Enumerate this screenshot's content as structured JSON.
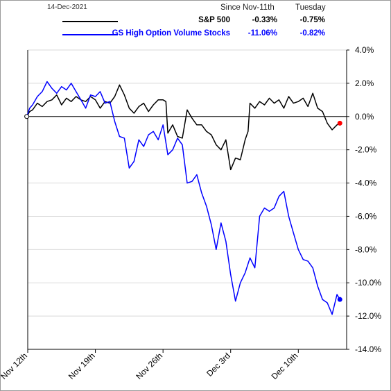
{
  "header": {
    "date": "14-Dec-2021",
    "col_since": "Since Nov-11th",
    "col_day": "Tuesday"
  },
  "legend": [
    {
      "name": "S&P 500",
      "since": "-0.33%",
      "day": "-0.75%",
      "color": "#000000"
    },
    {
      "name": "GS High Option Volume Stocks",
      "since": "-11.06%",
      "day": "-0.82%",
      "color": "#0000FF"
    }
  ],
  "chart_data": {
    "type": "line",
    "title": "",
    "xlabel": "",
    "ylabel": "",
    "x_tick_labels": [
      "Nov 12th",
      "Nov 19th",
      "Nov 26th",
      "Dec 3rd",
      "Dec 10th"
    ],
    "x_tick_days": [
      1,
      8,
      15,
      22,
      29
    ],
    "x_range_days": [
      1,
      34
    ],
    "ylim": [
      -14,
      4
    ],
    "y_ticks": [
      4,
      2,
      0,
      -2,
      -4,
      -6,
      -8,
      -10,
      -12,
      -14
    ],
    "y_tick_labels": [
      "4.0%",
      "2.0%",
      "0.0%",
      "-2.0%",
      "-4.0%",
      "-6.0%",
      "-8.0%",
      "-10.0%",
      "-12.0%",
      "-14.0%"
    ],
    "y_axis_side": "right",
    "zero_line": true,
    "grid": "horizontal",
    "series": [
      {
        "name": "S&P 500",
        "color": "#000000",
        "end_marker_color": "#FF0000",
        "points": [
          [
            0.9,
            0
          ],
          [
            1.2,
            0.3
          ],
          [
            1.5,
            0.4
          ],
          [
            2,
            0.8
          ],
          [
            2.5,
            0.6
          ],
          [
            3,
            0.9
          ],
          [
            3.5,
            1
          ],
          [
            4,
            1.3
          ],
          [
            4.5,
            0.7
          ],
          [
            5,
            1.1
          ],
          [
            5.5,
            0.9
          ],
          [
            6,
            1.2
          ],
          [
            6.5,
            1
          ],
          [
            7,
            0.9
          ],
          [
            7.5,
            1.2
          ],
          [
            8,
            1
          ],
          [
            8.5,
            0.5
          ],
          [
            9,
            0.9
          ],
          [
            9.5,
            0.8
          ],
          [
            10,
            1.2
          ],
          [
            10.5,
            1.9
          ],
          [
            11,
            1.3
          ],
          [
            11.5,
            0.5
          ],
          [
            12,
            0.2
          ],
          [
            12.5,
            0.6
          ],
          [
            13,
            0.8
          ],
          [
            13.5,
            0.3
          ],
          [
            14,
            0.7
          ],
          [
            14.5,
            1
          ],
          [
            15,
            1
          ],
          [
            15.3,
            0.9
          ],
          [
            15.5,
            -1
          ],
          [
            16,
            -0.5
          ],
          [
            16.5,
            -1.2
          ],
          [
            17,
            -1.3
          ],
          [
            17.5,
            0.4
          ],
          [
            18,
            -0.1
          ],
          [
            18.5,
            -0.5
          ],
          [
            19,
            -0.5
          ],
          [
            19.5,
            -0.9
          ],
          [
            20,
            -1.1
          ],
          [
            20.5,
            -1.7
          ],
          [
            21,
            -2
          ],
          [
            21.5,
            -1.4
          ],
          [
            22,
            -3.2
          ],
          [
            22.5,
            -2.5
          ],
          [
            23,
            -2.6
          ],
          [
            23.5,
            -1.4
          ],
          [
            23.8,
            -0.9
          ],
          [
            24,
            0.8
          ],
          [
            24.5,
            0.5
          ],
          [
            25,
            0.9
          ],
          [
            25.5,
            0.7
          ],
          [
            26,
            1.1
          ],
          [
            26.5,
            0.8
          ],
          [
            27,
            1
          ],
          [
            27.5,
            0.5
          ],
          [
            28,
            1.2
          ],
          [
            28.5,
            0.8
          ],
          [
            29,
            0.9
          ],
          [
            29.5,
            1.1
          ],
          [
            30,
            0.6
          ],
          [
            30.5,
            1.4
          ],
          [
            31,
            0.5
          ],
          [
            31.5,
            0.3
          ],
          [
            32,
            -0.4
          ],
          [
            32.5,
            -0.8
          ],
          [
            33,
            -0.5
          ],
          [
            33.3,
            -0.4
          ]
        ]
      },
      {
        "name": "GS High Option Volume Stocks",
        "color": "#0000FF",
        "end_marker_color": "#0000FF",
        "points": [
          [
            0.9,
            0
          ],
          [
            1.2,
            0.5
          ],
          [
            1.5,
            0.7
          ],
          [
            2,
            1.2
          ],
          [
            2.5,
            1.5
          ],
          [
            3,
            2.1
          ],
          [
            3.5,
            1.7
          ],
          [
            4,
            1.4
          ],
          [
            4.5,
            1.8
          ],
          [
            5,
            1.6
          ],
          [
            5.5,
            2
          ],
          [
            6,
            1.5
          ],
          [
            6.5,
            1
          ],
          [
            7,
            0.5
          ],
          [
            7.5,
            1.3
          ],
          [
            8,
            1.2
          ],
          [
            8.5,
            1.5
          ],
          [
            9,
            0.8
          ],
          [
            9.5,
            0.9
          ],
          [
            10,
            -0.3
          ],
          [
            10.5,
            -1.2
          ],
          [
            11,
            -1.3
          ],
          [
            11.5,
            -3.1
          ],
          [
            12,
            -2.7
          ],
          [
            12.5,
            -1.4
          ],
          [
            13,
            -1.8
          ],
          [
            13.5,
            -1.1
          ],
          [
            14,
            -0.9
          ],
          [
            14.5,
            -1.4
          ],
          [
            15,
            -0.5
          ],
          [
            15.5,
            -2.3
          ],
          [
            16,
            -2
          ],
          [
            16.5,
            -1.3
          ],
          [
            17,
            -1.7
          ],
          [
            17.5,
            -4
          ],
          [
            18,
            -3.9
          ],
          [
            18.5,
            -3.5
          ],
          [
            19,
            -4.6
          ],
          [
            19.5,
            -5.4
          ],
          [
            20,
            -6.5
          ],
          [
            20.5,
            -8
          ],
          [
            21,
            -6.4
          ],
          [
            21.5,
            -7.5
          ],
          [
            22,
            -9.5
          ],
          [
            22.5,
            -11.1
          ],
          [
            23,
            -10
          ],
          [
            23.5,
            -9.4
          ],
          [
            24,
            -8.5
          ],
          [
            24.5,
            -9.1
          ],
          [
            25,
            -6
          ],
          [
            25.5,
            -5.5
          ],
          [
            26,
            -5.7
          ],
          [
            26.5,
            -5.5
          ],
          [
            27,
            -4.8
          ],
          [
            27.5,
            -4.5
          ],
          [
            28,
            -6
          ],
          [
            28.5,
            -7
          ],
          [
            29,
            -8
          ],
          [
            29.5,
            -8.6
          ],
          [
            30,
            -8.7
          ],
          [
            30.5,
            -9.1
          ],
          [
            31,
            -10.2
          ],
          [
            31.5,
            -11
          ],
          [
            32,
            -11.2
          ],
          [
            32.5,
            -11.9
          ],
          [
            33,
            -10.7
          ],
          [
            33.3,
            -11
          ]
        ]
      }
    ]
  }
}
